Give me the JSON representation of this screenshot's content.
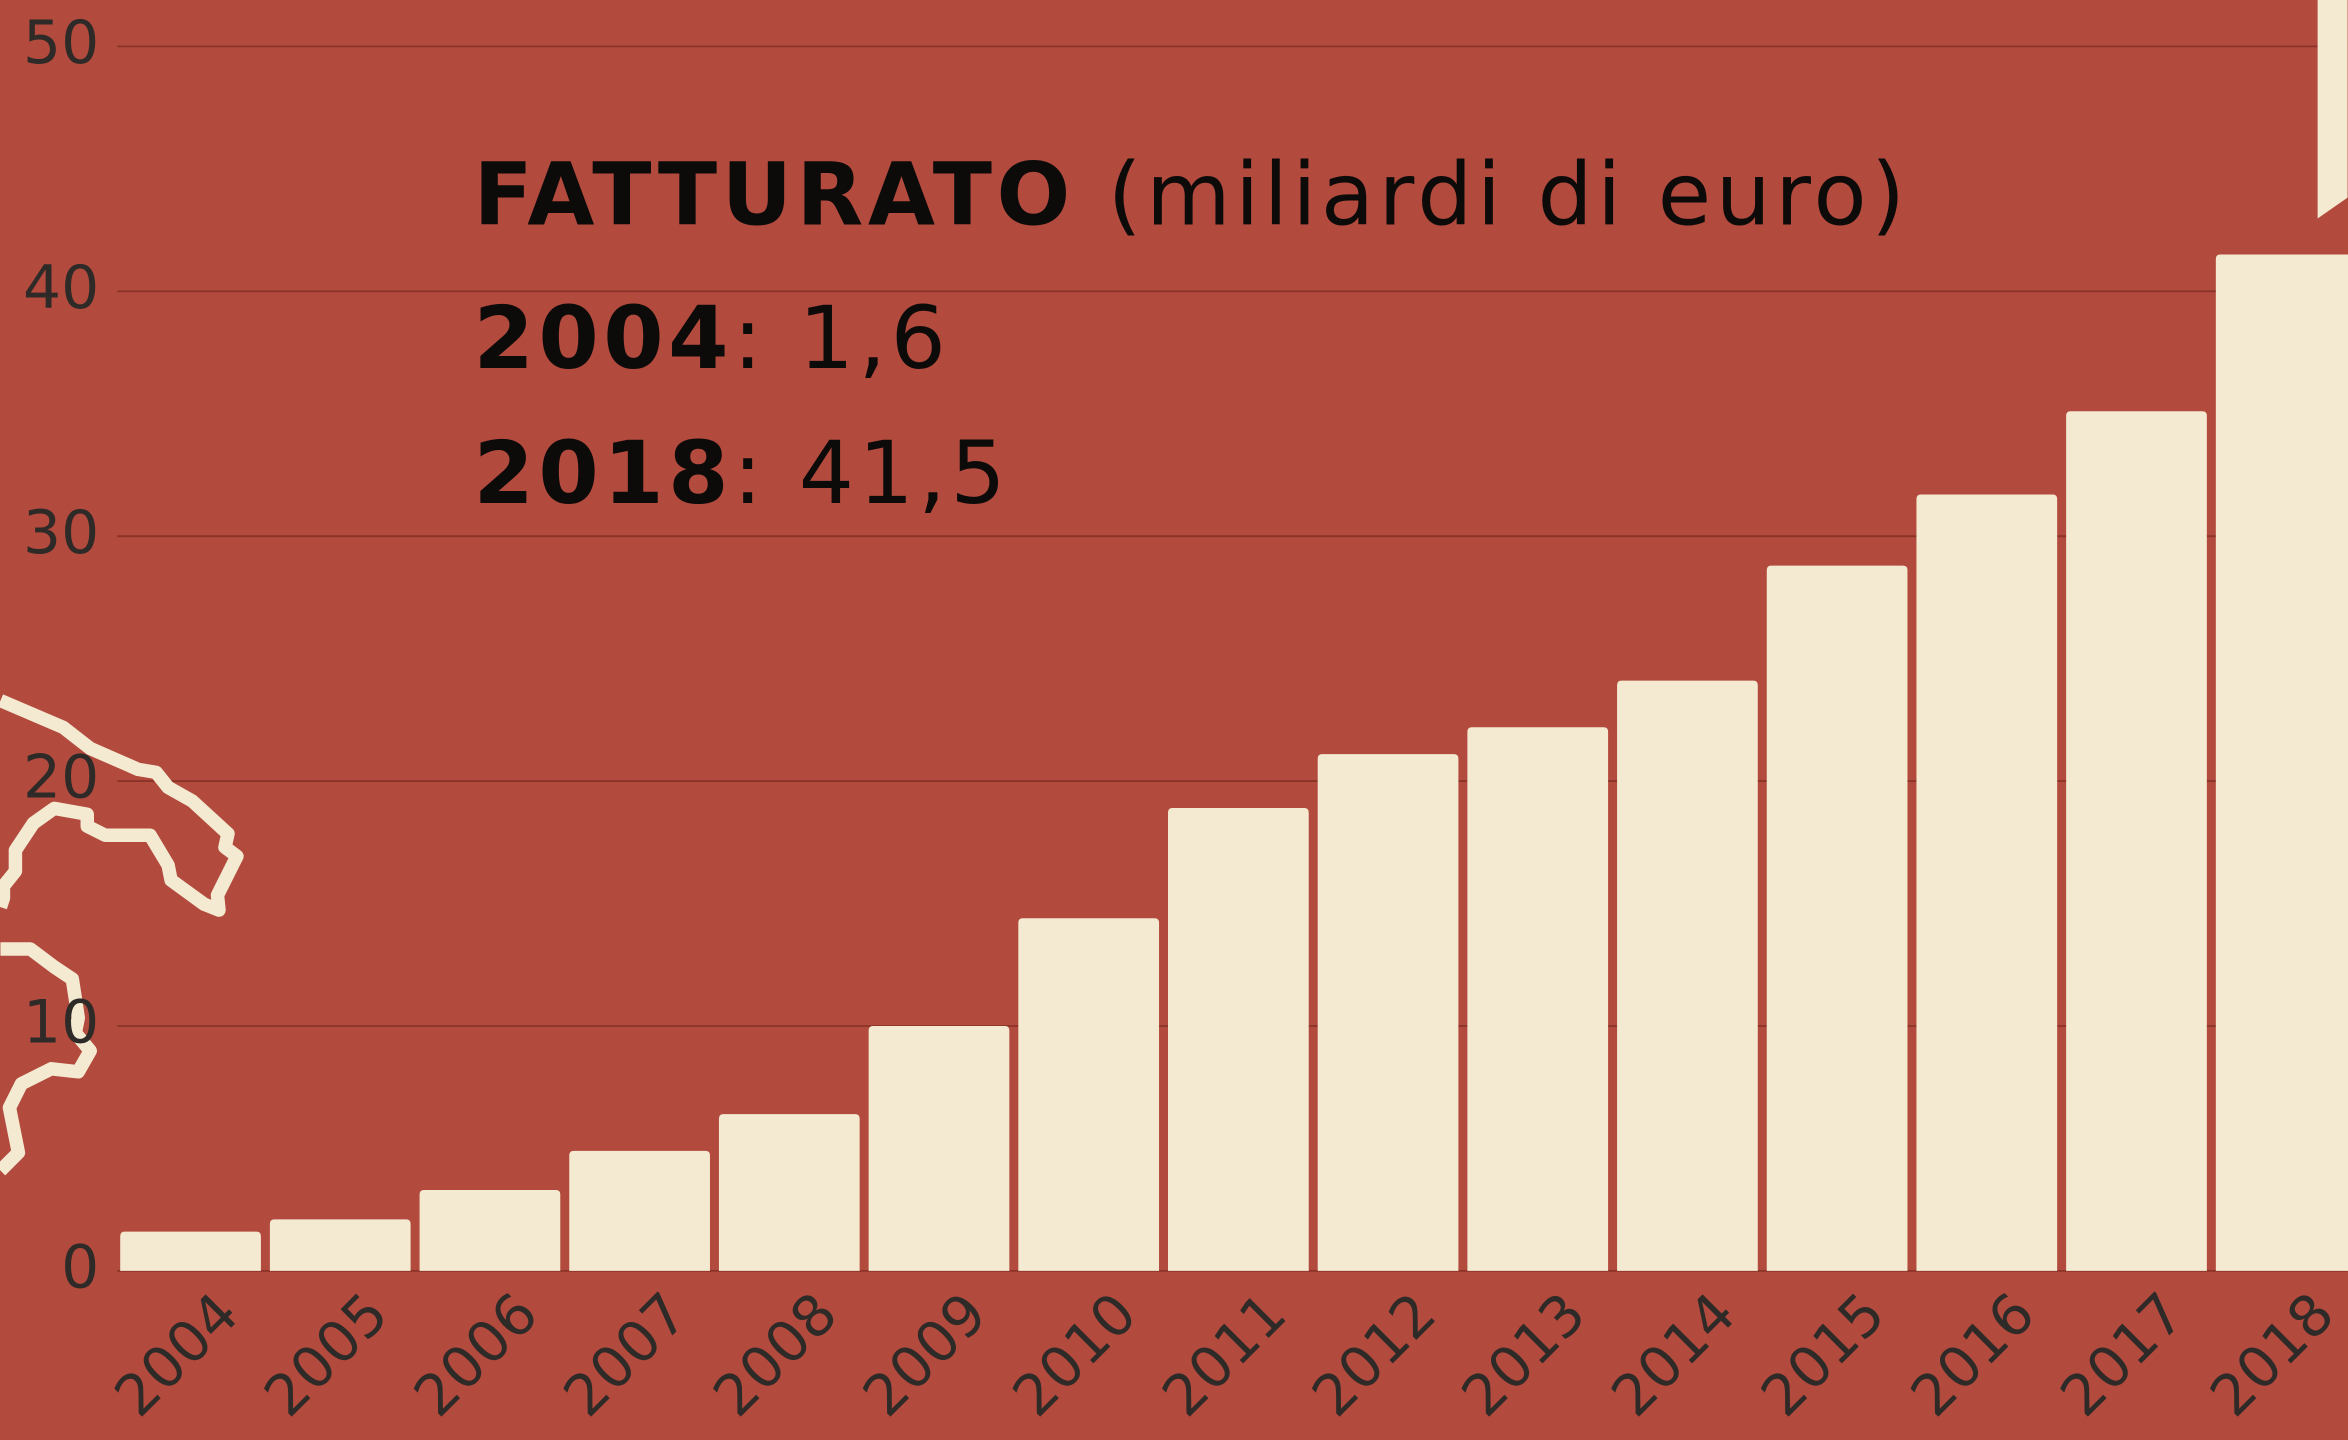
{
  "chart_data": {
    "type": "bar",
    "title": "FATTURATO",
    "subtitle": "(miliardi di euro)",
    "annotations": [
      {
        "label": "2004",
        "text": ": 1,6"
      },
      {
        "label": "2018",
        "text": ": 41,5"
      }
    ],
    "categories": [
      "2004",
      "2005",
      "2006",
      "2007",
      "2008",
      "2009",
      "2010",
      "2011",
      "2012",
      "2013",
      "2014",
      "2015",
      "2016",
      "2017",
      "2018"
    ],
    "values": [
      1.6,
      2.1,
      3.3,
      4.9,
      6.4,
      10.0,
      14.4,
      18.9,
      21.1,
      22.2,
      24.1,
      28.8,
      31.7,
      35.1,
      41.5
    ],
    "color": "#f4ead2",
    "ylim": [
      0,
      50
    ],
    "yticks": [
      0,
      10,
      20,
      30,
      40,
      50
    ],
    "grid": true
  }
}
